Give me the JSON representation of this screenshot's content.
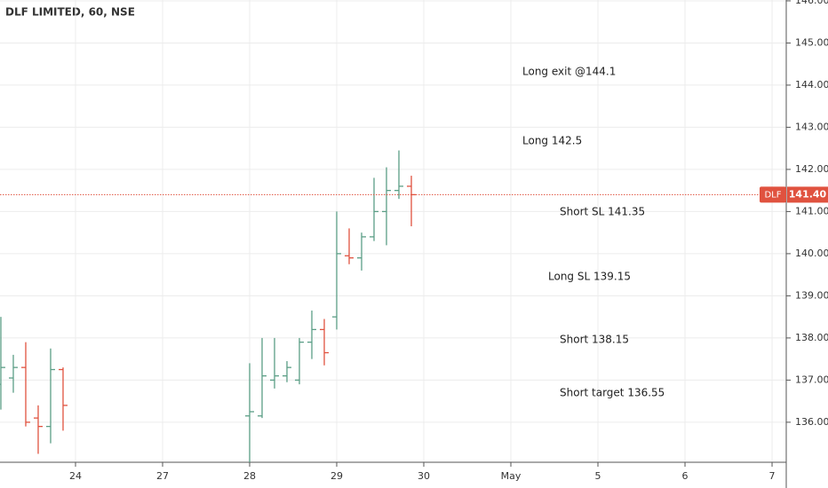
{
  "chart_data": {
    "type": "ohlc",
    "title": "DLF LIMITED, 60, NSE",
    "x": [
      0,
      1,
      2,
      3,
      4,
      5,
      20,
      21,
      22,
      23,
      24,
      25,
      26,
      27,
      28,
      29,
      30,
      31,
      32,
      33
    ],
    "open": [
      136.9,
      137.05,
      137.3,
      136.1,
      135.9,
      137.25,
      136.15,
      136.15,
      137.0,
      137.1,
      137.0,
      137.9,
      138.2,
      138.5,
      139.95,
      139.9,
      140.4,
      141.0,
      141.5,
      141.6
    ],
    "high": [
      138.5,
      137.6,
      137.9,
      136.4,
      137.75,
      137.3,
      137.4,
      138.0,
      138.0,
      137.45,
      138.0,
      138.65,
      138.45,
      141.0,
      140.6,
      140.5,
      141.8,
      142.05,
      142.45,
      141.85
    ],
    "low": [
      136.3,
      136.7,
      135.9,
      135.25,
      135.5,
      135.8,
      135.05,
      136.1,
      136.8,
      136.95,
      136.9,
      137.5,
      137.35,
      138.2,
      139.75,
      139.6,
      140.3,
      140.2,
      141.3,
      140.65
    ],
    "close": [
      137.3,
      137.3,
      136.0,
      135.9,
      137.25,
      136.4,
      136.25,
      137.1,
      137.1,
      137.3,
      137.9,
      138.2,
      137.65,
      140.0,
      139.9,
      140.4,
      141.0,
      141.5,
      141.6,
      141.4
    ],
    "up_color": "#5b9e86",
    "down_color": "#e0523f",
    "xlim": [
      -0.07,
      63.14
    ],
    "xticks": [
      {
        "value": 6,
        "label": "24"
      },
      {
        "value": 13,
        "label": "27"
      },
      {
        "value": 20,
        "label": "28"
      },
      {
        "value": 27,
        "label": "29"
      },
      {
        "value": 34,
        "label": "30"
      },
      {
        "value": 41,
        "label": "May"
      },
      {
        "value": 48,
        "label": "5"
      },
      {
        "value": 55,
        "label": "6"
      },
      {
        "value": 62,
        "label": "7"
      }
    ],
    "ylim": [
      135.05,
      146.02
    ],
    "yticks": [
      {
        "value": 136,
        "label": "136.00"
      },
      {
        "value": 137,
        "label": "137.00"
      },
      {
        "value": 138,
        "label": "138.00"
      },
      {
        "value": 139,
        "label": "139.00"
      },
      {
        "value": 140,
        "label": "140.00"
      },
      {
        "value": 141,
        "label": "141.00"
      },
      {
        "value": 142,
        "label": "142.00"
      },
      {
        "value": 143,
        "label": "143.00"
      },
      {
        "value": 144,
        "label": "144.00"
      },
      {
        "value": 145,
        "label": "145.00"
      },
      {
        "value": 146,
        "label": "146.00"
      }
    ],
    "grid": true,
    "last_price": {
      "value": 141.4,
      "label": "141.40"
    },
    "symbol": "DLF",
    "annotations": [
      "Long exit @144.1",
      "Long 142.5",
      "Short SL 141.35",
      "Long SL 139.15",
      "Short 138.15",
      "Short target 136.55"
    ]
  }
}
